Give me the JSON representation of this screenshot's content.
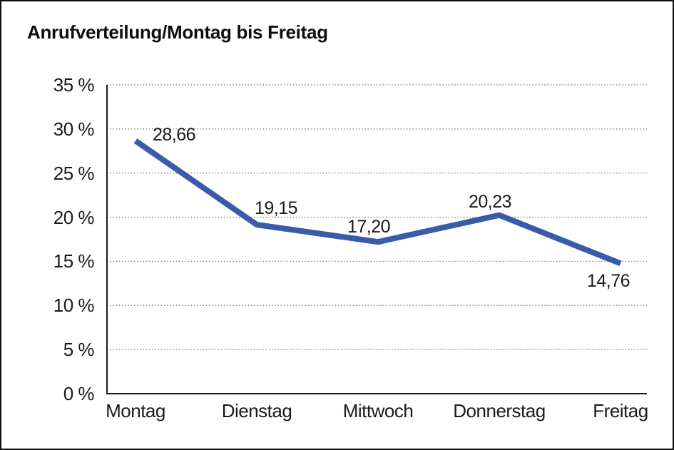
{
  "page": {
    "background_color": "#ffffff",
    "border_color": "#0d0d0d"
  },
  "chart_data": {
    "type": "line",
    "title": "Anrufverteilung/Montag bis Freitag",
    "categories": [
      "Montag",
      "Dienstag",
      "Mittwoch",
      "Donnerstag",
      "Freitag"
    ],
    "values": [
      28.66,
      19.15,
      17.2,
      20.23,
      14.76
    ],
    "value_labels": [
      "28,66",
      "19,15",
      "17,20",
      "20,23",
      "14,76"
    ],
    "y_ticks": [
      {
        "value": 35,
        "label": "35 %"
      },
      {
        "value": 30,
        "label": "30 %"
      },
      {
        "value": 25,
        "label": "25 %"
      },
      {
        "value": 20,
        "label": "20 %"
      },
      {
        "value": 15,
        "label": "15 %"
      },
      {
        "value": 10,
        "label": "10 %"
      },
      {
        "value": 5,
        "label": "5 %"
      },
      {
        "value": 0,
        "label": "0 %"
      }
    ],
    "ylim": [
      0,
      35
    ],
    "xlabel": "",
    "ylabel": "",
    "grid": "horizontal-dotted",
    "legend": "none",
    "line_color": "#3A5BA8",
    "grid_color": "#8a8a8a",
    "axis_color": "#1a1a1a"
  }
}
